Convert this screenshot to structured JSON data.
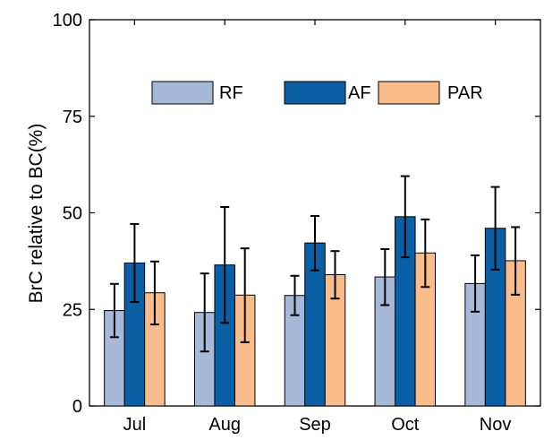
{
  "chart_data": {
    "type": "bar",
    "ylabel": "BrC relative to BC(%)",
    "xlabel": "",
    "title": "",
    "ylim": [
      0,
      100
    ],
    "yticks": [
      0,
      25,
      50,
      75,
      100
    ],
    "categories": [
      "Jul",
      "Aug",
      "Sep",
      "Oct",
      "Nov"
    ],
    "grid": false,
    "legend_position": "top",
    "series": [
      {
        "name": "RF",
        "color": "#a6b9d9",
        "values": [
          24.7,
          24.2,
          28.6,
          33.4,
          31.7
        ],
        "err_low": [
          17.8,
          14.1,
          23.5,
          26.1,
          24.4
        ],
        "err_high": [
          31.6,
          34.3,
          33.7,
          40.6,
          39.0
        ]
      },
      {
        "name": "AF",
        "color": "#0a5fa5",
        "values": [
          37.0,
          36.5,
          42.2,
          49.0,
          46.0
        ],
        "err_low": [
          26.9,
          21.5,
          35.1,
          38.5,
          35.3
        ],
        "err_high": [
          47.1,
          51.5,
          49.2,
          59.5,
          56.7
        ]
      },
      {
        "name": "PAR",
        "color": "#f9bc8a",
        "values": [
          29.3,
          28.7,
          34.0,
          39.6,
          37.6
        ],
        "err_low": [
          21.1,
          16.5,
          27.8,
          30.8,
          28.8
        ],
        "err_high": [
          37.4,
          40.8,
          40.1,
          48.3,
          46.3
        ]
      }
    ]
  }
}
